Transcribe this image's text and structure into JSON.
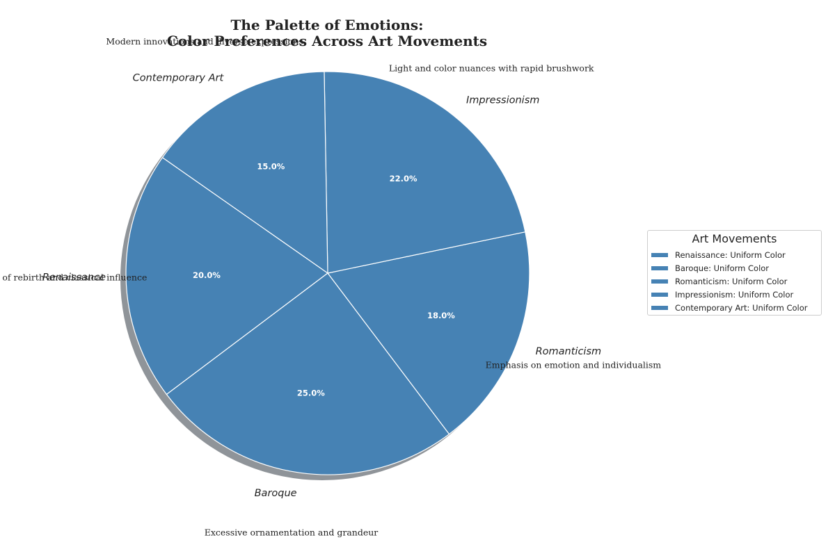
{
  "chart_data": {
    "type": "pie",
    "title": "The Palette of Emotions:",
    "subtitle": "Color Preferences Across Art Movements",
    "categories": [
      "Renaissance",
      "Baroque",
      "Romanticism",
      "Impressionism",
      "Contemporary Art"
    ],
    "values": [
      20.0,
      25.0,
      18.0,
      22.0,
      15.0
    ],
    "percent_labels": [
      "20.0%",
      "25.0%",
      "18.0%",
      "22.0%",
      "15.0%"
    ],
    "annotations": [
      "Era of rebirth and classical influence",
      "Excessive ornamentation and grandeur",
      "Emphasis on emotion and individualism",
      "Light and color nuances with rapid brushwork",
      "Modern innovations and diverse expressions"
    ],
    "slice_color": "#4682b4",
    "shadow": true,
    "legend": {
      "title": "Art Movements",
      "placement": "right",
      "items": [
        "Renaissance: Uniform Color",
        "Baroque: Uniform Color",
        "Romanticism: Uniform Color",
        "Impressionism: Uniform Color",
        "Contemporary Art: Uniform Color"
      ]
    }
  }
}
